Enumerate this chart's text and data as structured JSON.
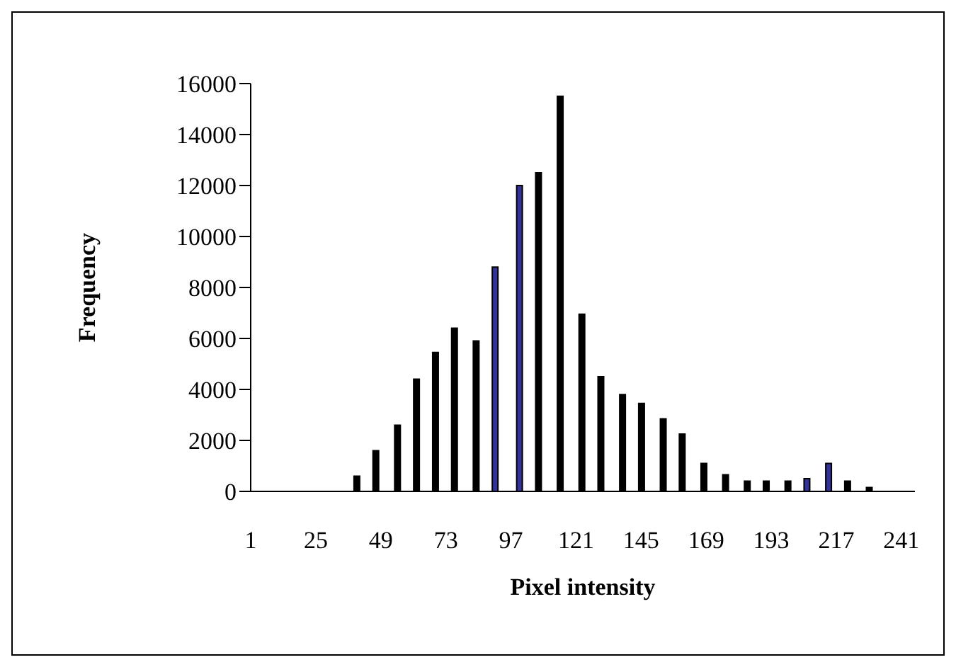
{
  "chart_data": {
    "type": "bar",
    "xlabel": "Pixel intensity",
    "ylabel": "Frequency",
    "x": [
      40,
      47,
      55,
      62,
      69,
      76,
      84,
      91,
      100,
      107,
      115,
      123,
      130,
      138,
      145,
      153,
      160,
      168,
      176,
      184,
      191,
      199,
      206,
      214,
      221,
      229
    ],
    "values": [
      600,
      1600,
      2600,
      4400,
      5450,
      6400,
      5900,
      8800,
      12000,
      12500,
      15500,
      6950,
      4500,
      3800,
      3450,
      2850,
      2250,
      1100,
      650,
      400,
      400,
      400,
      500,
      1100,
      400,
      150
    ],
    "colors": [
      "#000000",
      "#000000",
      "#000000",
      "#000000",
      "#000000",
      "#000000",
      "#000000",
      "#333399",
      "#333399",
      "#000000",
      "#000000",
      "#000000",
      "#000000",
      "#000000",
      "#000000",
      "#000000",
      "#000000",
      "#000000",
      "#000000",
      "#000000",
      "#000000",
      "#000000",
      "#333399",
      "#333399",
      "#000000",
      "#000000"
    ],
    "xlim": [
      1,
      246
    ],
    "xticks": [
      1,
      25,
      49,
      73,
      97,
      121,
      145,
      169,
      193,
      217,
      241
    ],
    "ylim": [
      0,
      16000
    ],
    "yticks": [
      0,
      2000,
      4000,
      6000,
      8000,
      10000,
      12000,
      14000,
      16000
    ],
    "grid": false,
    "legend": false
  }
}
